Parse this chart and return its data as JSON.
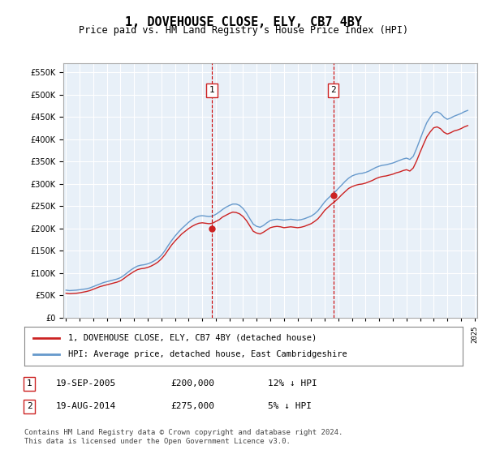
{
  "title": "1, DOVEHOUSE CLOSE, ELY, CB7 4BY",
  "subtitle": "Price paid vs. HM Land Registry's House Price Index (HPI)",
  "ylabel_vals": [
    0,
    50000,
    100000,
    150000,
    200000,
    250000,
    300000,
    350000,
    400000,
    450000,
    500000,
    550000
  ],
  "ylim": [
    0,
    570000
  ],
  "x_start_year": 1995,
  "x_end_year": 2025,
  "background_color": "#ffffff",
  "plot_bg_color": "#e8f0f8",
  "grid_color": "#ffffff",
  "hpi_color": "#6699cc",
  "price_color": "#cc2222",
  "vline_color": "#cc0000",
  "vline_style": "--",
  "sale1_year": 2005.72,
  "sale1_price": 200000,
  "sale2_year": 2014.63,
  "sale2_price": 275000,
  "legend_entry1": "1, DOVEHOUSE CLOSE, ELY, CB7 4BY (detached house)",
  "legend_entry2": "HPI: Average price, detached house, East Cambridgeshire",
  "table_row1": "1    19-SEP-2005    £200,000    12% ↓ HPI",
  "table_row2": "2    19-AUG-2014    £275,000    5% ↓ HPI",
  "footer": "Contains HM Land Registry data © Crown copyright and database right 2024.\nThis data is licensed under the Open Government Licence v3.0.",
  "hpi_data": {
    "years": [
      1995.0,
      1995.25,
      1995.5,
      1995.75,
      1996.0,
      1996.25,
      1996.5,
      1996.75,
      1997.0,
      1997.25,
      1997.5,
      1997.75,
      1998.0,
      1998.25,
      1998.5,
      1998.75,
      1999.0,
      1999.25,
      1999.5,
      1999.75,
      2000.0,
      2000.25,
      2000.5,
      2000.75,
      2001.0,
      2001.25,
      2001.5,
      2001.75,
      2002.0,
      2002.25,
      2002.5,
      2002.75,
      2003.0,
      2003.25,
      2003.5,
      2003.75,
      2004.0,
      2004.25,
      2004.5,
      2004.75,
      2005.0,
      2005.25,
      2005.5,
      2005.75,
      2006.0,
      2006.25,
      2006.5,
      2006.75,
      2007.0,
      2007.25,
      2007.5,
      2007.75,
      2008.0,
      2008.25,
      2008.5,
      2008.75,
      2009.0,
      2009.25,
      2009.5,
      2009.75,
      2010.0,
      2010.25,
      2010.5,
      2010.75,
      2011.0,
      2011.25,
      2011.5,
      2011.75,
      2012.0,
      2012.25,
      2012.5,
      2012.75,
      2013.0,
      2013.25,
      2013.5,
      2013.75,
      2014.0,
      2014.25,
      2014.5,
      2014.75,
      2015.0,
      2015.25,
      2015.5,
      2015.75,
      2016.0,
      2016.25,
      2016.5,
      2016.75,
      2017.0,
      2017.25,
      2017.5,
      2017.75,
      2018.0,
      2018.25,
      2018.5,
      2018.75,
      2019.0,
      2019.25,
      2019.5,
      2019.75,
      2020.0,
      2020.25,
      2020.5,
      2020.75,
      2021.0,
      2021.25,
      2021.5,
      2021.75,
      2022.0,
      2022.25,
      2022.5,
      2022.75,
      2023.0,
      2023.25,
      2023.5,
      2023.75,
      2024.0,
      2024.25,
      2024.5
    ],
    "values": [
      62000,
      61000,
      61500,
      62000,
      63000,
      64000,
      65000,
      67000,
      70000,
      73000,
      76000,
      79000,
      81000,
      83000,
      85000,
      87000,
      90000,
      95000,
      101000,
      107000,
      112000,
      116000,
      118000,
      119000,
      121000,
      124000,
      128000,
      133000,
      140000,
      150000,
      162000,
      173000,
      183000,
      192000,
      200000,
      207000,
      214000,
      220000,
      225000,
      228000,
      229000,
      228000,
      227000,
      228000,
      232000,
      237000,
      243000,
      248000,
      252000,
      255000,
      255000,
      252000,
      245000,
      235000,
      222000,
      210000,
      205000,
      203000,
      207000,
      213000,
      218000,
      220000,
      221000,
      220000,
      219000,
      220000,
      221000,
      220000,
      219000,
      220000,
      222000,
      225000,
      228000,
      233000,
      240000,
      250000,
      260000,
      268000,
      275000,
      282000,
      290000,
      298000,
      306000,
      313000,
      318000,
      321000,
      323000,
      324000,
      326000,
      329000,
      333000,
      337000,
      340000,
      342000,
      343000,
      345000,
      347000,
      350000,
      353000,
      356000,
      358000,
      355000,
      362000,
      380000,
      400000,
      420000,
      438000,
      450000,
      460000,
      462000,
      458000,
      450000,
      445000,
      448000,
      452000,
      455000,
      458000,
      462000,
      465000
    ]
  },
  "price_data": {
    "years": [
      1995.0,
      1995.25,
      1995.5,
      1995.75,
      1996.0,
      1996.25,
      1996.5,
      1996.75,
      1997.0,
      1997.25,
      1997.5,
      1997.75,
      1998.0,
      1998.25,
      1998.5,
      1998.75,
      1999.0,
      1999.25,
      1999.5,
      1999.75,
      2000.0,
      2000.25,
      2000.5,
      2000.75,
      2001.0,
      2001.25,
      2001.5,
      2001.75,
      2002.0,
      2002.25,
      2002.5,
      2002.75,
      2003.0,
      2003.25,
      2003.5,
      2003.75,
      2004.0,
      2004.25,
      2004.5,
      2004.75,
      2005.0,
      2005.25,
      2005.5,
      2005.75,
      2006.0,
      2006.25,
      2006.5,
      2006.75,
      2007.0,
      2007.25,
      2007.5,
      2007.75,
      2008.0,
      2008.25,
      2008.5,
      2008.75,
      2009.0,
      2009.25,
      2009.5,
      2009.75,
      2010.0,
      2010.25,
      2010.5,
      2010.75,
      2011.0,
      2011.25,
      2011.5,
      2011.75,
      2012.0,
      2012.25,
      2012.5,
      2012.75,
      2013.0,
      2013.25,
      2013.5,
      2013.75,
      2014.0,
      2014.25,
      2014.5,
      2014.75,
      2015.0,
      2015.25,
      2015.5,
      2015.75,
      2016.0,
      2016.25,
      2016.5,
      2016.75,
      2017.0,
      2017.25,
      2017.5,
      2017.75,
      2018.0,
      2018.25,
      2018.5,
      2018.75,
      2019.0,
      2019.25,
      2019.5,
      2019.75,
      2020.0,
      2020.25,
      2020.5,
      2020.75,
      2021.0,
      2021.25,
      2021.5,
      2021.75,
      2022.0,
      2022.25,
      2022.5,
      2022.75,
      2023.0,
      2023.25,
      2023.5,
      2023.75,
      2024.0,
      2024.25,
      2024.5
    ],
    "values": [
      55000,
      54000,
      54500,
      55000,
      56000,
      57500,
      59000,
      61000,
      64000,
      67000,
      70000,
      72000,
      74000,
      76000,
      78000,
      80000,
      83000,
      88000,
      94000,
      99000,
      104000,
      108000,
      110000,
      111000,
      113000,
      116000,
      120000,
      125000,
      132000,
      141000,
      152000,
      163000,
      172000,
      180000,
      188000,
      194000,
      200000,
      205000,
      209000,
      212000,
      213000,
      212000,
      211000,
      212000,
      216000,
      220000,
      226000,
      230000,
      234000,
      237000,
      236000,
      233000,
      227000,
      218000,
      206000,
      194000,
      190000,
      188000,
      192000,
      197000,
      202000,
      204000,
      205000,
      204000,
      202000,
      203000,
      204000,
      203000,
      202000,
      203000,
      205000,
      208000,
      211000,
      216000,
      222000,
      231000,
      241000,
      248000,
      255000,
      261000,
      268000,
      276000,
      283000,
      290000,
      294000,
      297000,
      299000,
      300000,
      302000,
      305000,
      308000,
      312000,
      315000,
      317000,
      318000,
      320000,
      322000,
      325000,
      327000,
      330000,
      332000,
      329000,
      336000,
      352000,
      371000,
      389000,
      406000,
      417000,
      426000,
      428000,
      424000,
      416000,
      412000,
      415000,
      419000,
      421000,
      424000,
      428000,
      431000
    ]
  }
}
